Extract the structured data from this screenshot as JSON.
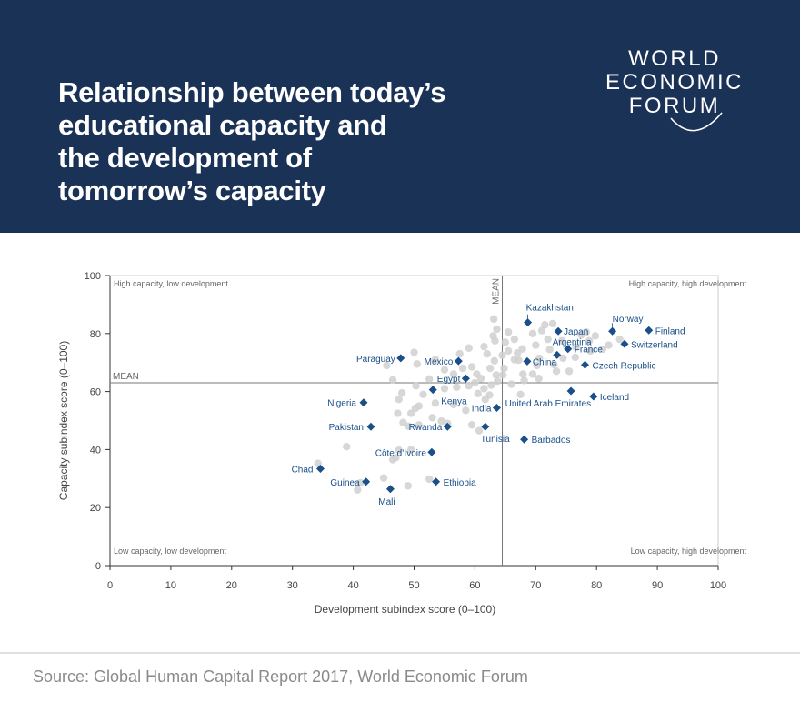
{
  "header": {
    "title": "Relationship between today’s\neducational capacity and\nthe development of\ntomorrow’s capacity",
    "logo_lines": [
      "WORLD",
      "ECONOMIC",
      "FORUM"
    ]
  },
  "source": "Source: Global Human Capital Report 2017, World Economic Forum",
  "colors": {
    "header_bg": "#1b3257",
    "highlight": "#1a4f8a",
    "dot": "#d0d0d0",
    "label": "#1a4f8a"
  },
  "chart_data": {
    "type": "scatter",
    "xlabel": "Development subindex score (0–100)",
    "ylabel": "Capacity subindex score (0–100)",
    "xlim": [
      0,
      100
    ],
    "ylim": [
      0,
      100
    ],
    "xticks": [
      "0",
      "10",
      "20",
      "30",
      "40",
      "50",
      "60",
      "70",
      "80",
      "90",
      "100"
    ],
    "yticks": [
      "0",
      "20",
      "40",
      "60",
      "80",
      "100"
    ],
    "mean_x": 64.5,
    "mean_y": 63,
    "mean_label": "MEAN",
    "quadrants": {
      "top_left": "High capacity, low development",
      "top_right": "High capacity, high development",
      "bottom_left": "Low capacity, low development",
      "bottom_right": "Low capacity, high development"
    },
    "highlighted": [
      {
        "label": "Kazakhstan",
        "x": 68.7,
        "y": 83.8
      },
      {
        "label": "Japan",
        "x": 73.7,
        "y": 80.8
      },
      {
        "label": "Norway",
        "x": 82.6,
        "y": 80.8
      },
      {
        "label": "Finland",
        "x": 88.6,
        "y": 81.1
      },
      {
        "label": "Switzerland",
        "x": 84.6,
        "y": 76.4
      },
      {
        "label": "Argentina",
        "x": 73.5,
        "y": 72.6
      },
      {
        "label": "France",
        "x": 75.3,
        "y": 74.7
      },
      {
        "label": "China",
        "x": 68.6,
        "y": 70.4
      },
      {
        "label": "Czech Republic",
        "x": 78.1,
        "y": 69.2
      },
      {
        "label": "Paraguay",
        "x": 47.8,
        "y": 71.5
      },
      {
        "label": "Mexico",
        "x": 57.3,
        "y": 70.5
      },
      {
        "label": "Egypt",
        "x": 58.5,
        "y": 64.5
      },
      {
        "label": "Kenya",
        "x": 53.1,
        "y": 60.6
      },
      {
        "label": "Nigeria",
        "x": 41.7,
        "y": 56.2
      },
      {
        "label": "United Arab Emirates",
        "x": 75.8,
        "y": 60.2
      },
      {
        "label": "Iceland",
        "x": 79.5,
        "y": 58.3
      },
      {
        "label": "India",
        "x": 63.6,
        "y": 54.4
      },
      {
        "label": "Pakistan",
        "x": 42.9,
        "y": 47.9
      },
      {
        "label": "Rwanda",
        "x": 55.5,
        "y": 47.9
      },
      {
        "label": "Tunisia",
        "x": 61.7,
        "y": 47.9
      },
      {
        "label": "Barbados",
        "x": 68.1,
        "y": 43.5
      },
      {
        "label": "Côte d’Ivoire",
        "x": 52.9,
        "y": 39.1
      },
      {
        "label": "Chad",
        "x": 34.6,
        "y": 33.4
      },
      {
        "label": "Guinea",
        "x": 42.1,
        "y": 28.9
      },
      {
        "label": "Ethiopia",
        "x": 53.6,
        "y": 28.9
      },
      {
        "label": "Mali",
        "x": 46.1,
        "y": 26.4
      }
    ],
    "others": [
      [
        34.2,
        35.2
      ],
      [
        38.9,
        41.0
      ],
      [
        40.7,
        26.1
      ],
      [
        41.2,
        28.5
      ],
      [
        45.0,
        30.2
      ],
      [
        46.5,
        36.5
      ],
      [
        47.0,
        37.2
      ],
      [
        47.5,
        39.8
      ],
      [
        49.5,
        40.0
      ],
      [
        49.0,
        27.5
      ],
      [
        47.3,
        52.5
      ],
      [
        47.5,
        57.3
      ],
      [
        48.2,
        49.3
      ],
      [
        49.1,
        48.0
      ],
      [
        50.8,
        48.5
      ],
      [
        50.2,
        54.2
      ],
      [
        50.3,
        62.0
      ],
      [
        50.8,
        55.0
      ],
      [
        53.0,
        51.0
      ],
      [
        54.5,
        49.8
      ],
      [
        55.5,
        49.0
      ],
      [
        52.5,
        29.8
      ],
      [
        58.5,
        53.5
      ],
      [
        59.5,
        48.5
      ],
      [
        60.7,
        46.5
      ],
      [
        61.7,
        57.3
      ],
      [
        60.5,
        59.3
      ],
      [
        62.4,
        58.8
      ],
      [
        61.5,
        61.0
      ],
      [
        62.7,
        62.2
      ],
      [
        63.7,
        63.6
      ],
      [
        63.5,
        65.7
      ],
      [
        64.6,
        65.7
      ],
      [
        62.5,
        68.0
      ],
      [
        63.2,
        70.6
      ],
      [
        64.5,
        72.5
      ],
      [
        62.0,
        73.0
      ],
      [
        61.5,
        75.5
      ],
      [
        63.3,
        77.5
      ],
      [
        63.0,
        79.2
      ],
      [
        63.6,
        81.5
      ],
      [
        63.1,
        85.0
      ],
      [
        65.0,
        77.0
      ],
      [
        65.5,
        80.5
      ],
      [
        66.5,
        78.0
      ],
      [
        67.0,
        73.3
      ],
      [
        67.8,
        74.7
      ],
      [
        67.2,
        70.8
      ],
      [
        67.9,
        66.0
      ],
      [
        68.1,
        63.8
      ],
      [
        69.5,
        66.0
      ],
      [
        70.2,
        69.0
      ],
      [
        70.6,
        71.5
      ],
      [
        70.0,
        76.0
      ],
      [
        69.5,
        80.0
      ],
      [
        71.0,
        81.0
      ],
      [
        71.5,
        83.0
      ],
      [
        72.0,
        78.0
      ],
      [
        72.8,
        83.4
      ],
      [
        72.3,
        74.5
      ],
      [
        73.0,
        69.3
      ],
      [
        73.4,
        67.0
      ],
      [
        74.5,
        71.5
      ],
      [
        74.3,
        77.5
      ],
      [
        76.5,
        71.8
      ],
      [
        76.6,
        75.3
      ],
      [
        77.5,
        79.5
      ],
      [
        78.3,
        80.5
      ],
      [
        78.8,
        77.5
      ],
      [
        79.0,
        74.0
      ],
      [
        79.8,
        79.2
      ],
      [
        81.0,
        74.6
      ],
      [
        82.0,
        76.0
      ],
      [
        83.8,
        78.0
      ],
      [
        57.5,
        73.0
      ],
      [
        55.0,
        67.5
      ],
      [
        56.5,
        66.0
      ],
      [
        58.0,
        68.0
      ],
      [
        59.0,
        75.0
      ],
      [
        59.5,
        68.5
      ],
      [
        60.3,
        66.0
      ],
      [
        64.8,
        68.0
      ],
      [
        66.5,
        71.0
      ],
      [
        65.5,
        74.0
      ],
      [
        70.5,
        64.5
      ],
      [
        75.5,
        67.0
      ],
      [
        46.5,
        64.0
      ],
      [
        50.0,
        73.5
      ],
      [
        50.5,
        69.5
      ],
      [
        53.5,
        71.0
      ],
      [
        52.5,
        64.3
      ],
      [
        45.5,
        69.0
      ],
      [
        48.0,
        59.5
      ],
      [
        55.0,
        61.0
      ],
      [
        57.0,
        61.5
      ],
      [
        59.0,
        62.0
      ],
      [
        60.0,
        63.0
      ],
      [
        61.0,
        64.5
      ],
      [
        66.0,
        62.5
      ],
      [
        67.5,
        59.0
      ],
      [
        49.5,
        52.5
      ],
      [
        53.5,
        56.0
      ],
      [
        51.5,
        59.0
      ],
      [
        56.5,
        55.5
      ]
    ]
  }
}
